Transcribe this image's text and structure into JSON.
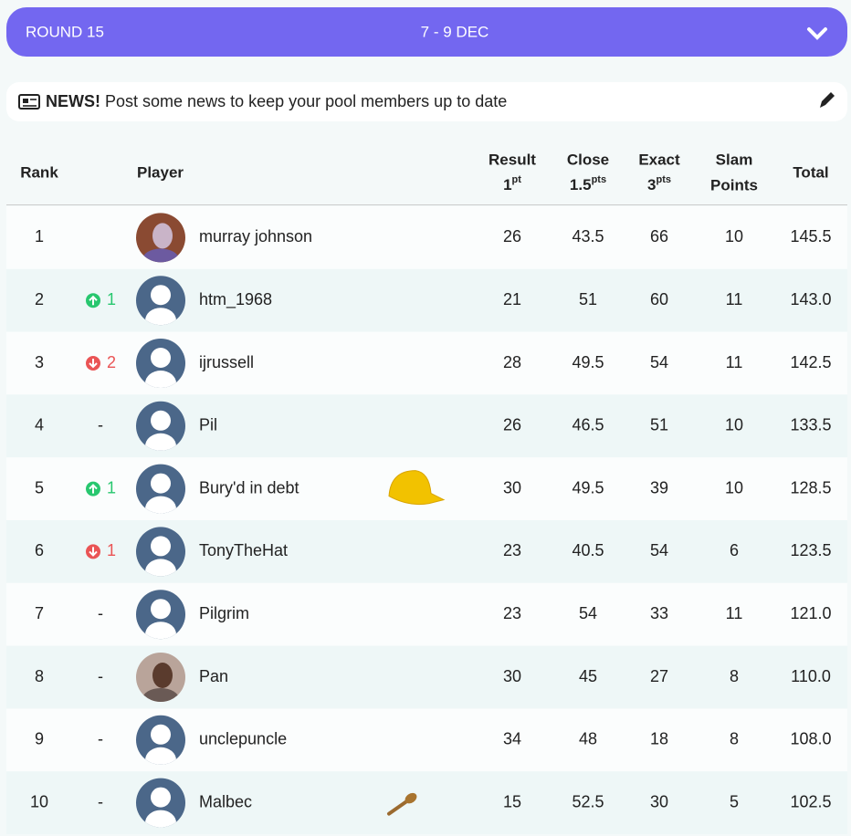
{
  "header": {
    "round": "ROUND 15",
    "dates": "7 - 9 DEC"
  },
  "news": {
    "label": "NEWS!",
    "text": "Post some news to keep your pool members up to date"
  },
  "table": {
    "columns": {
      "rank": "Rank",
      "player": "Player",
      "result": {
        "title": "Result",
        "points": "1",
        "unit": "pt"
      },
      "close": {
        "title": "Close",
        "points": "1.5",
        "unit": "pts"
      },
      "exact": {
        "title": "Exact",
        "points": "3",
        "unit": "pts"
      },
      "slam": {
        "title": "Slam",
        "title2": "Points"
      },
      "total": "Total"
    },
    "rows": [
      {
        "rank": "1",
        "move": null,
        "avatar": "photo",
        "player": "murray johnson",
        "badge": null,
        "result": "26",
        "close": "43.5",
        "exact": "66",
        "slam": "10",
        "total": "145.5"
      },
      {
        "rank": "2",
        "move": {
          "dir": "up",
          "label": "1"
        },
        "avatar": "default",
        "player": "htm_1968",
        "badge": null,
        "result": "21",
        "close": "51",
        "exact": "60",
        "slam": "11",
        "total": "143.0"
      },
      {
        "rank": "3",
        "move": {
          "dir": "down",
          "label": "2"
        },
        "avatar": "default",
        "player": "ijrussell",
        "badge": null,
        "result": "28",
        "close": "49.5",
        "exact": "54",
        "slam": "11",
        "total": "142.5"
      },
      {
        "rank": "4",
        "move": {
          "dir": "none",
          "label": "-"
        },
        "avatar": "default",
        "player": "Pil",
        "badge": null,
        "result": "26",
        "close": "46.5",
        "exact": "51",
        "slam": "10",
        "total": "133.5"
      },
      {
        "rank": "5",
        "move": {
          "dir": "up",
          "label": "1"
        },
        "avatar": "default",
        "player": "Bury'd in debt",
        "badge": "cap",
        "result": "30",
        "close": "49.5",
        "exact": "39",
        "slam": "10",
        "total": "128.5"
      },
      {
        "rank": "6",
        "move": {
          "dir": "down",
          "label": "1"
        },
        "avatar": "default",
        "player": "TonyTheHat",
        "badge": null,
        "result": "23",
        "close": "40.5",
        "exact": "54",
        "slam": "6",
        "total": "123.5"
      },
      {
        "rank": "7",
        "move": {
          "dir": "none",
          "label": "-"
        },
        "avatar": "default",
        "player": "Pilgrim",
        "badge": null,
        "result": "23",
        "close": "54",
        "exact": "33",
        "slam": "11",
        "total": "121.0"
      },
      {
        "rank": "8",
        "move": {
          "dir": "none",
          "label": "-"
        },
        "avatar": "photo",
        "player": "Pan",
        "badge": null,
        "result": "30",
        "close": "45",
        "exact": "27",
        "slam": "8",
        "total": "110.0"
      },
      {
        "rank": "9",
        "move": {
          "dir": "none",
          "label": "-"
        },
        "avatar": "default",
        "player": "unclepuncle",
        "badge": null,
        "result": "34",
        "close": "48",
        "exact": "18",
        "slam": "8",
        "total": "108.0"
      },
      {
        "rank": "10",
        "move": {
          "dir": "none",
          "label": "-"
        },
        "avatar": "default",
        "player": "Malbec",
        "badge": "spoon",
        "result": "15",
        "close": "52.5",
        "exact": "30",
        "slam": "5",
        "total": "102.5"
      }
    ]
  }
}
